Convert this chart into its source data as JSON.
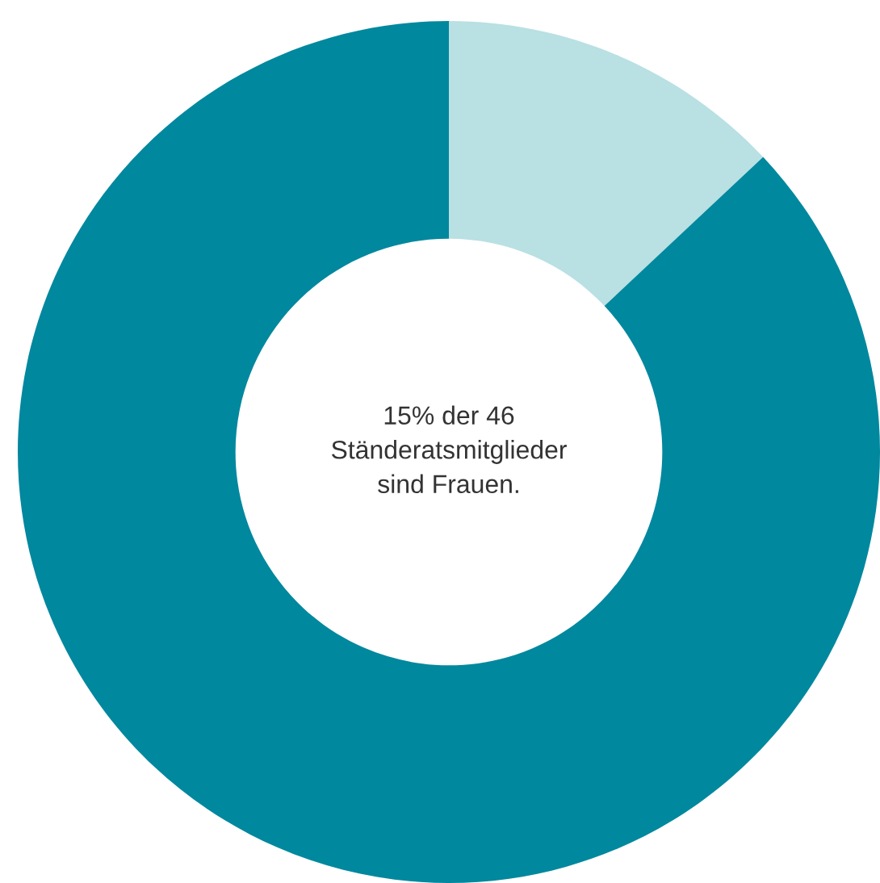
{
  "chart_data": {
    "type": "donut",
    "categories": [
      null,
      null
    ],
    "values": [
      13,
      87
    ],
    "colors": [
      "#b9e0e3",
      "#00889e"
    ],
    "annotations": [
      "15% der 46\nStänderatsmitglieder\nsind Frauen."
    ]
  }
}
